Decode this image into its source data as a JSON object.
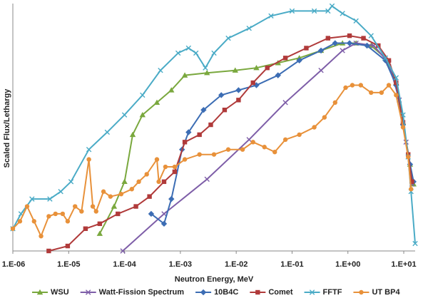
{
  "chart_data": {
    "type": "line",
    "x_label": "Neutron Energy, MeV",
    "y_label": "Scaled Flux/Lethargy",
    "x_log": true,
    "xlim": [
      1e-06,
      16
    ],
    "ylim": [
      0,
      100
    ],
    "xticks": [
      {
        "value": 1e-06,
        "label": "1.E-06"
      },
      {
        "value": 1e-05,
        "label": "1.E-05"
      },
      {
        "value": 0.0001,
        "label": "1.E-04"
      },
      {
        "value": 0.001,
        "label": "1.E-03"
      },
      {
        "value": 0.01,
        "label": "1.E-02"
      },
      {
        "value": 0.1,
        "label": "1.E-01"
      },
      {
        "value": 1,
        "label": "1.E+00"
      },
      {
        "value": 10,
        "label": "1.E+01"
      }
    ],
    "legend": "bottom",
    "series": [
      {
        "name": "WSU",
        "color": "#7aa83e",
        "marker": "triangle",
        "x": [
          3.6e-05,
          6.5e-05,
          0.0001,
          0.00014,
          0.00021,
          0.00038,
          0.00069,
          0.0012,
          0.003,
          0.0096,
          0.023,
          0.056,
          0.135,
          0.33,
          0.8,
          1.4,
          2.6,
          4.7,
          7.3,
          9.7,
          13,
          15
        ],
        "values": [
          7,
          18,
          28,
          47,
          55,
          60,
          65,
          71,
          72,
          73,
          74,
          76,
          78,
          81,
          84,
          84,
          83,
          78,
          68,
          52,
          35,
          27
        ]
      },
      {
        "name": "Watt-Fission Spectrum",
        "color": "#7e5ea8",
        "marker": "x",
        "x": [
          9.3e-05,
          0.00051,
          0.003,
          0.017,
          0.076,
          0.33,
          0.8,
          1.4,
          2.9,
          5.4,
          8.3,
          11,
          14
        ],
        "values": [
          0,
          15,
          29,
          45,
          60,
          73,
          81,
          84,
          83,
          76,
          61,
          44,
          27
        ]
      },
      {
        "name": "10B4C",
        "color": "#3c6db4",
        "marker": "diamond",
        "x": [
          0.0003,
          0.00051,
          0.00069,
          0.00107,
          0.0014,
          0.0026,
          0.0054,
          0.011,
          0.023,
          0.056,
          0.135,
          0.33,
          0.59,
          1.07,
          2.2,
          4.7,
          7.3,
          9.7,
          13,
          15
        ],
        "values": [
          15,
          11,
          21,
          41,
          48,
          57,
          63,
          65,
          67,
          71,
          77,
          81,
          84,
          84,
          83,
          77,
          67,
          51,
          35,
          28
        ]
      },
      {
        "name": "Comet",
        "color": "#b03a3a",
        "marker": "square",
        "x": [
          4.4e-06,
          9.6e-06,
          2e-05,
          3.6e-05,
          7.6e-05,
          0.00016,
          0.00028,
          0.00051,
          0.00079,
          0.0012,
          0.0022,
          0.0035,
          0.0062,
          0.011,
          0.02,
          0.036,
          0.076,
          0.18,
          0.44,
          1.07,
          1.9,
          3.5,
          5.4,
          7.3,
          9.7,
          12,
          14
        ],
        "values": [
          0,
          2,
          9,
          11,
          15,
          18,
          22,
          28,
          32,
          44,
          47,
          51,
          57,
          61,
          68,
          74,
          78,
          82,
          86,
          87,
          86,
          83,
          77,
          68,
          52,
          39,
          28
        ]
      },
      {
        "name": "FFTF",
        "color": "#4aabc6",
        "marker": "x",
        "x": [
          1e-06,
          1.4e-06,
          2.2e-06,
          4.6e-06,
          7.2e-06,
          1.1e-05,
          2.3e-05,
          4.9e-05,
          0.0001,
          0.00021,
          0.00044,
          0.00091,
          0.0014,
          0.0019,
          0.0028,
          0.004,
          0.0072,
          0.017,
          0.042,
          0.1,
          0.25,
          0.44,
          0.52,
          0.8,
          1.4,
          2.6,
          4.7,
          7.3,
          9.7,
          12,
          13.5,
          16
        ],
        "values": [
          9,
          15,
          21,
          21,
          24,
          28,
          41,
          48,
          55,
          63,
          73,
          80,
          82,
          80,
          74,
          80,
          86,
          90,
          95,
          97,
          97,
          97,
          99,
          96,
          93,
          87,
          78,
          70,
          55,
          38,
          24,
          3
        ]
      },
      {
        "name": "UT BP4",
        "color": "#e8913a",
        "marker": "circle",
        "x": [
          1e-06,
          1.34e-06,
          1.8e-06,
          2.4e-06,
          3.2e-06,
          4.4e-06,
          5.8e-06,
          7.8e-06,
          9.6e-06,
          1.3e-05,
          1.7e-05,
          2.3e-05,
          2.7e-05,
          3.1e-05,
          4.2e-05,
          5.6e-05,
          8.7e-05,
          0.000135,
          0.00018,
          0.00025,
          0.00038,
          0.00041,
          0.00054,
          0.00079,
          0.0012,
          0.0022,
          0.004,
          0.0072,
          0.013,
          0.02,
          0.032,
          0.049,
          0.076,
          0.135,
          0.25,
          0.38,
          0.59,
          0.91,
          1.2,
          1.7,
          2.6,
          4,
          5.4,
          7.3,
          9.7,
          12,
          13.5
        ],
        "values": [
          9,
          12,
          18,
          12,
          6,
          14,
          15,
          15,
          12,
          18,
          16,
          37,
          18,
          16,
          24,
          22,
          23,
          25,
          28,
          31,
          37,
          28,
          34,
          34,
          37,
          39,
          39,
          41,
          41,
          44,
          42,
          40,
          45,
          47,
          50,
          54,
          60,
          66,
          67,
          67,
          64,
          64,
          67,
          63,
          50,
          38,
          25
        ]
      }
    ]
  }
}
